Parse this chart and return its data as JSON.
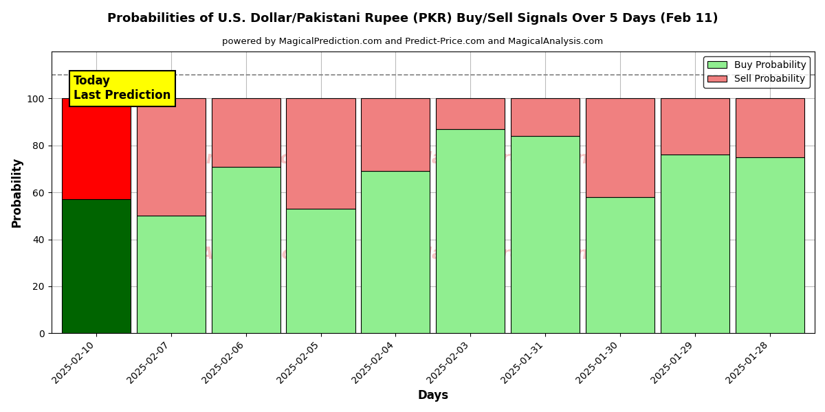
{
  "title": "Probabilities of U.S. Dollar/Pakistani Rupee (PKR) Buy/Sell Signals Over 5 Days (Feb 11)",
  "subtitle": "powered by MagicalPrediction.com and Predict-Price.com and MagicalAnalysis.com",
  "xlabel": "Days",
  "ylabel": "Probability",
  "categories": [
    "2025-02-10",
    "2025-02-07",
    "2025-02-06",
    "2025-02-05",
    "2025-02-04",
    "2025-02-03",
    "2025-01-31",
    "2025-01-30",
    "2025-01-29",
    "2025-01-28"
  ],
  "buy_values": [
    57,
    50,
    71,
    53,
    69,
    87,
    84,
    58,
    76,
    75
  ],
  "sell_values": [
    43,
    50,
    29,
    47,
    31,
    13,
    16,
    42,
    24,
    25
  ],
  "today_buy_color": "#006400",
  "today_sell_color": "#FF0000",
  "buy_color": "#90EE90",
  "sell_color": "#F08080",
  "today_annotation_text": "Today\nLast Prediction",
  "today_annotation_bg": "#FFFF00",
  "ylim": [
    0,
    120
  ],
  "yticks": [
    0,
    20,
    40,
    60,
    80,
    100
  ],
  "dashed_line_y": 110,
  "legend_buy_label": "Buy Probability",
  "legend_sell_label": "Sell Probability",
  "background_color": "#ffffff",
  "grid_color": "#bbbbbb",
  "fig_width": 12,
  "fig_height": 6,
  "bar_width": 0.92,
  "watermark_row1": "MagicalAnalysis.com",
  "watermark_row2": "MagicalPrediction.com",
  "watermark_color": "#F08080",
  "watermark_alpha": 0.45
}
